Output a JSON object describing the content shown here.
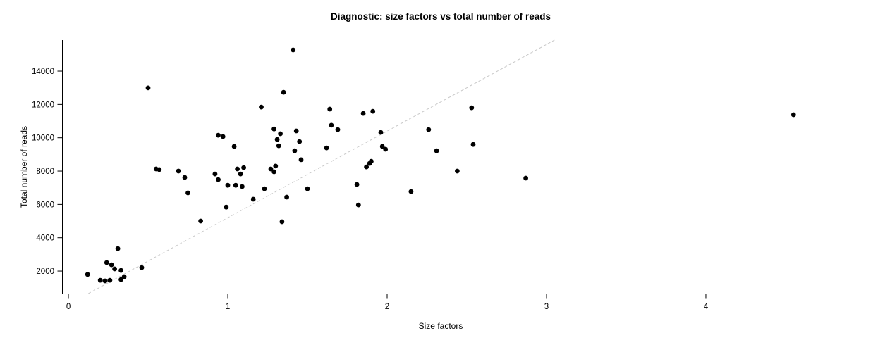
{
  "chart_data": {
    "type": "scatter",
    "title": "Diagnostic: size factors vs total number of reads",
    "xlabel": "Size factors",
    "ylabel": "Total number of reads",
    "x_ticks": [
      0,
      1,
      2,
      3,
      4
    ],
    "y_ticks": [
      2000,
      4000,
      6000,
      8000,
      10000,
      12000,
      14000
    ],
    "xlim": [
      -0.04,
      4.717
    ],
    "ylim": [
      650,
      15860
    ],
    "grid": false,
    "legend": false,
    "point_color": "#000000",
    "reference_line": {
      "type": "dashed",
      "color": "#c8c8c8",
      "slope": 5200,
      "intercept": 0
    },
    "points": [
      [
        0.12,
        1800
      ],
      [
        0.2,
        1450
      ],
      [
        0.23,
        1410
      ],
      [
        0.26,
        1450
      ],
      [
        0.24,
        2510
      ],
      [
        0.27,
        2380
      ],
      [
        0.29,
        2130
      ],
      [
        0.31,
        3350
      ],
      [
        0.33,
        2040
      ],
      [
        0.33,
        1490
      ],
      [
        0.35,
        1660
      ],
      [
        0.46,
        2210
      ],
      [
        0.5,
        12990
      ],
      [
        0.55,
        8130
      ],
      [
        0.57,
        8090
      ],
      [
        0.69,
        8000
      ],
      [
        0.73,
        7620
      ],
      [
        0.75,
        6690
      ],
      [
        0.83,
        5000
      ],
      [
        0.92,
        7830
      ],
      [
        0.94,
        7490
      ],
      [
        0.94,
        10150
      ],
      [
        0.97,
        10070
      ],
      [
        0.99,
        5840
      ],
      [
        1.0,
        7150
      ],
      [
        1.04,
        9480
      ],
      [
        1.05,
        7150
      ],
      [
        1.06,
        8130
      ],
      [
        1.08,
        7830
      ],
      [
        1.09,
        7070
      ],
      [
        1.1,
        8210
      ],
      [
        1.16,
        6310
      ],
      [
        1.21,
        11840
      ],
      [
        1.23,
        6940
      ],
      [
        1.27,
        8130
      ],
      [
        1.29,
        10530
      ],
      [
        1.29,
        7960
      ],
      [
        1.3,
        8300
      ],
      [
        1.31,
        9900
      ],
      [
        1.32,
        9520
      ],
      [
        1.33,
        10240
      ],
      [
        1.34,
        4960
      ],
      [
        1.35,
        12730
      ],
      [
        1.37,
        6440
      ],
      [
        1.41,
        15270
      ],
      [
        1.42,
        9220
      ],
      [
        1.43,
        10410
      ],
      [
        1.45,
        9770
      ],
      [
        1.46,
        8680
      ],
      [
        1.5,
        6940
      ],
      [
        1.62,
        9390
      ],
      [
        1.64,
        11720
      ],
      [
        1.65,
        10750
      ],
      [
        1.69,
        10490
      ],
      [
        1.81,
        7200
      ],
      [
        1.82,
        5970
      ],
      [
        1.85,
        11460
      ],
      [
        1.87,
        8250
      ],
      [
        1.89,
        8460
      ],
      [
        1.9,
        8590
      ],
      [
        1.91,
        11590
      ],
      [
        1.96,
        10320
      ],
      [
        1.97,
        9480
      ],
      [
        1.99,
        9310
      ],
      [
        2.15,
        6770
      ],
      [
        2.26,
        10490
      ],
      [
        2.31,
        9220
      ],
      [
        2.44,
        8000
      ],
      [
        2.53,
        11800
      ],
      [
        2.54,
        9600
      ],
      [
        2.87,
        7580
      ],
      [
        4.55,
        11380
      ]
    ]
  }
}
